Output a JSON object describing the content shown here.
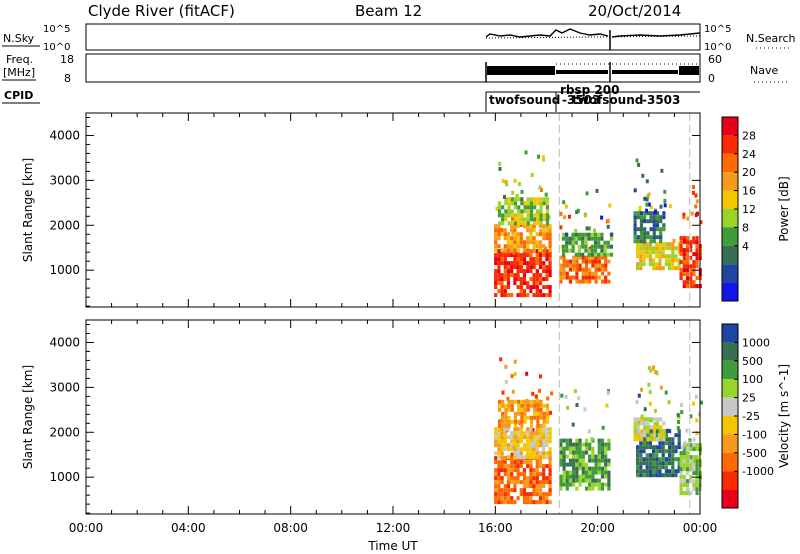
{
  "header": {
    "station": "Clyde River (fitACF)",
    "beam": "Beam 12",
    "date": "20/Oct/2014"
  },
  "top_panels": {
    "nsky_label": "N.Sky",
    "nsky_ticks": [
      "10^5",
      "10^0"
    ],
    "nsearch_label": "N.Search",
    "nsearch_ticks": [
      "10^5",
      "10^0"
    ],
    "freq_label": "Freq.",
    "freq_unit": "[MHz]",
    "freq_ticks": [
      "18",
      "8"
    ],
    "nave_label": "Nave",
    "nave_ticks": [
      "60",
      "0"
    ],
    "cpid_label": "CPID",
    "cpid_entries": [
      {
        "text": "twofsound",
        "t": 16.0
      },
      {
        "text": "rbsp 200",
        "t": 19.2
      },
      {
        "text": "-3503",
        "t": 19.2
      },
      {
        "text": "twofsound",
        "t": 20.5
      },
      {
        "text": "-3503",
        "t": 22.4
      }
    ]
  },
  "chart_data": [
    {
      "type": "heatmap",
      "title": "",
      "xlabel": "Time UT",
      "ylabel": "Slant Range [km]",
      "xlim": [
        0,
        24
      ],
      "ylim": [
        180,
        4500
      ],
      "yticks": [
        "1000",
        "2000",
        "3000",
        "4000"
      ],
      "xticks": [
        "00:00",
        "04:00",
        "08:00",
        "12:00",
        "16:00",
        "20:00",
        "00:00"
      ],
      "colorbar": {
        "label": "Power [dB]",
        "ticks": [
          "28",
          "24",
          "20",
          "16",
          "12",
          "8",
          "4"
        ],
        "colors": [
          "#e8001a",
          "#f82a00",
          "#ff6a00",
          "#f49a1c",
          "#f2c600",
          "#98d42a",
          "#3e9c3a",
          "#386e52",
          "#1e46a0",
          "#1414e8"
        ]
      },
      "blocks": [
        {
          "t0": 15.95,
          "t1": 18.2,
          "r0": 400,
          "r1": 1400,
          "level": 1
        },
        {
          "t0": 15.95,
          "t1": 18.2,
          "r0": 1400,
          "r1": 2000,
          "level": 3
        },
        {
          "t0": 16.1,
          "t1": 18.0,
          "r0": 2000,
          "r1": 2600,
          "level": 5
        },
        {
          "t0": 18.5,
          "t1": 20.5,
          "r0": 700,
          "r1": 1300,
          "level": 2
        },
        {
          "t0": 18.6,
          "t1": 20.5,
          "r0": 1300,
          "r1": 1800,
          "level": 6
        },
        {
          "t0": 21.5,
          "t1": 23.2,
          "r0": 1000,
          "r1": 1600,
          "level": 4
        },
        {
          "t0": 21.4,
          "t1": 22.6,
          "r0": 1600,
          "r1": 2300,
          "level": 7
        },
        {
          "t0": 23.2,
          "t1": 24.0,
          "r0": 600,
          "r1": 1700,
          "level": 1
        }
      ]
    },
    {
      "type": "heatmap",
      "title": "",
      "xlabel": "Time UT",
      "ylabel": "Slant Range [km]",
      "xlim": [
        0,
        24
      ],
      "ylim": [
        180,
        4500
      ],
      "yticks": [
        "1000",
        "2000",
        "3000",
        "4000"
      ],
      "xticks": [
        "00:00",
        "04:00",
        "08:00",
        "12:00",
        "16:00",
        "20:00",
        "00:00"
      ],
      "colorbar": {
        "label": "Velocity [m s^-1]",
        "ticks": [
          "1000",
          "500",
          "100",
          "25",
          "-25",
          "-100",
          "-500",
          "-1000"
        ],
        "colors": [
          "#1e46a0",
          "#386e52",
          "#3e9c3a",
          "#98d42a",
          "#c8c8c8",
          "#f2c600",
          "#f49a1c",
          "#ff6a00",
          "#f82a00",
          "#e8001a"
        ]
      },
      "blocks": [
        {
          "t0": 15.95,
          "t1": 18.2,
          "r0": 400,
          "r1": 1400,
          "level": 7
        },
        {
          "t0": 15.95,
          "t1": 18.2,
          "r0": 1400,
          "r1": 2100,
          "level": 5
        },
        {
          "t0": 16.1,
          "t1": 18.0,
          "r0": 2100,
          "r1": 2700,
          "level": 6
        },
        {
          "t0": 18.5,
          "t1": 20.5,
          "r0": 700,
          "r1": 1800,
          "level": 2
        },
        {
          "t0": 21.5,
          "t1": 23.2,
          "r0": 1000,
          "r1": 2000,
          "level": 1
        },
        {
          "t0": 21.4,
          "t1": 22.6,
          "r0": 1800,
          "r1": 2300,
          "level": 4
        },
        {
          "t0": 23.2,
          "t1": 24.0,
          "r0": 600,
          "r1": 1700,
          "level": 3
        }
      ]
    }
  ]
}
